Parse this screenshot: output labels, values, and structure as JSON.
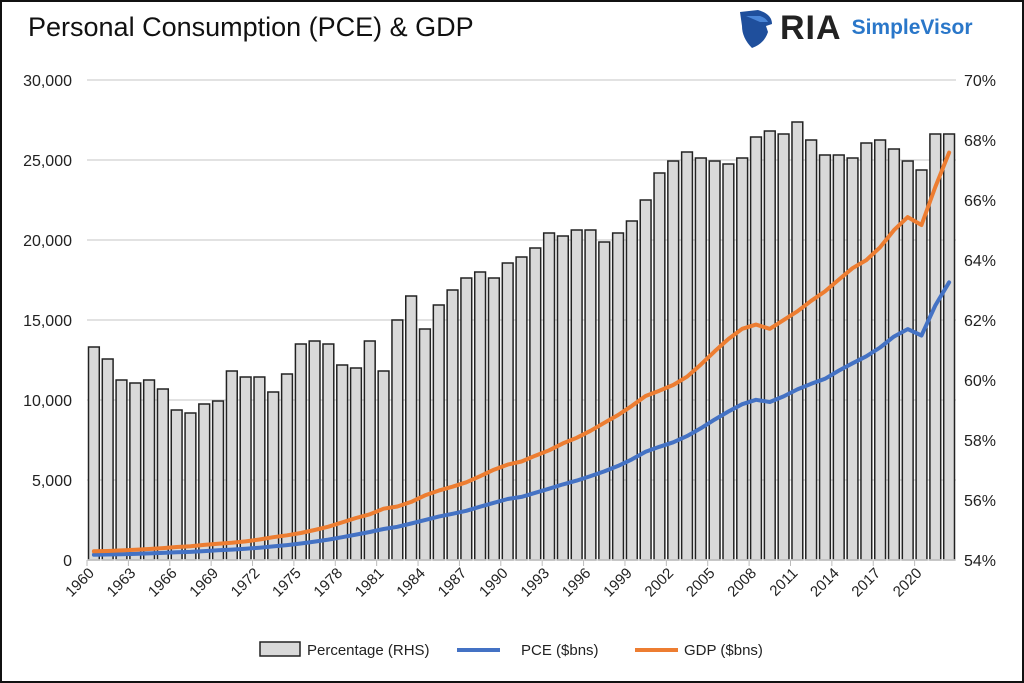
{
  "title": "Personal Consumption (PCE) & GDP",
  "logo": {
    "brand": "RIA",
    "product": "SimpleVisor",
    "icon": "eagle-shield-icon",
    "brand_color": "#1f4f9c",
    "product_color": "#2a77c9"
  },
  "chart_data": {
    "type": "bar+line",
    "title": "Personal Consumption (PCE) & GDP",
    "xlabel": "",
    "ylabel": "",
    "x": [
      1960,
      1961,
      1962,
      1963,
      1964,
      1965,
      1966,
      1967,
      1968,
      1969,
      1970,
      1971,
      1972,
      1973,
      1974,
      1975,
      1976,
      1977,
      1978,
      1979,
      1980,
      1981,
      1982,
      1983,
      1984,
      1985,
      1986,
      1987,
      1988,
      1989,
      1990,
      1991,
      1992,
      1993,
      1994,
      1995,
      1996,
      1997,
      1998,
      1999,
      2000,
      2001,
      2002,
      2003,
      2004,
      2005,
      2006,
      2007,
      2008,
      2009,
      2010,
      2011,
      2012,
      2013,
      2014,
      2015,
      2016,
      2017,
      2018,
      2019,
      2020,
      2021,
      2022
    ],
    "x_tick_labels": [
      "1960",
      "1963",
      "1966",
      "1969",
      "1972",
      "1975",
      "1978",
      "1981",
      "1984",
      "1987",
      "1990",
      "1993",
      "1996",
      "1999",
      "2002",
      "2005",
      "2008",
      "2011",
      "2014",
      "2017",
      "2020"
    ],
    "y_left": {
      "range": [
        0,
        30000
      ],
      "ticks": [
        "0",
        "5,000",
        "10,000",
        "15,000",
        "20,000",
        "25,000",
        "30,000"
      ]
    },
    "y_right": {
      "range": [
        54,
        70
      ],
      "ticks": [
        "54%",
        "56%",
        "58%",
        "60%",
        "62%",
        "64%",
        "66%",
        "68%",
        "70%"
      ]
    },
    "grid": true,
    "legend_position": "bottom",
    "series": [
      {
        "name": "Percentage (RHS)",
        "type": "bar",
        "axis": "right",
        "color": "#d9d9d9",
        "values": [
          61.1,
          60.7,
          60.0,
          59.9,
          60.0,
          59.7,
          59.0,
          58.9,
          59.2,
          59.3,
          60.3,
          60.1,
          60.1,
          59.6,
          60.2,
          61.2,
          61.3,
          61.2,
          60.5,
          60.4,
          61.3,
          60.3,
          62.0,
          62.8,
          61.7,
          62.5,
          63.0,
          63.4,
          63.6,
          63.4,
          63.9,
          64.1,
          64.4,
          64.9,
          64.8,
          65.0,
          65.0,
          64.6,
          64.9,
          65.3,
          66.0,
          66.9,
          67.3,
          67.6,
          67.4,
          67.3,
          67.2,
          67.4,
          68.1,
          68.3,
          68.2,
          68.6,
          68.0,
          67.5,
          67.5,
          67.4,
          67.9,
          68.0,
          67.7,
          67.3,
          67.0,
          68.2,
          68.2
        ]
      },
      {
        "name": "PCE ($bns)",
        "type": "line",
        "axis": "left",
        "color": "#4472c4",
        "values": [
          331,
          341,
          362,
          382,
          411,
          443,
          481,
          508,
          558,
          605,
          647,
          700,
          769,
          849,
          930,
          1031,
          1148,
          1274,
          1423,
          1586,
          1751,
          1935,
          2072,
          2282,
          2492,
          2713,
          2887,
          3077,
          3330,
          3577,
          3810,
          3945,
          4199,
          4454,
          4722,
          4964,
          5245,
          5539,
          5879,
          6286,
          6769,
          7076,
          7357,
          7746,
          8232,
          8774,
          9280,
          9736,
          10015,
          9873,
          10225,
          10662,
          11014,
          11325,
          11836,
          12292,
          12733,
          13283,
          13960,
          14431,
          14034,
          15908,
          17358
        ]
      },
      {
        "name": "GDP ($bns)",
        "type": "line",
        "axis": "left",
        "color": "#ed7d31",
        "values": [
          542,
          562,
          603,
          637,
          685,
          743,
          815,
          862,
          943,
          1019,
          1073,
          1165,
          1280,
          1425,
          1545,
          1685,
          1873,
          2082,
          2352,
          2627,
          2857,
          3207,
          3344,
          3634,
          4037,
          4339,
          4580,
          4855,
          5236,
          5642,
          5963,
          6158,
          6520,
          6859,
          7287,
          7640,
          8073,
          8578,
          9063,
          9631,
          10251,
          10582,
          10936,
          11458,
          12214,
          13037,
          13815,
          14452,
          14713,
          14449,
          14992,
          15543,
          16197,
          16785,
          17527,
          18238,
          18745,
          19543,
          20612,
          21433,
          20937,
          23315,
          25463
        ]
      }
    ]
  }
}
